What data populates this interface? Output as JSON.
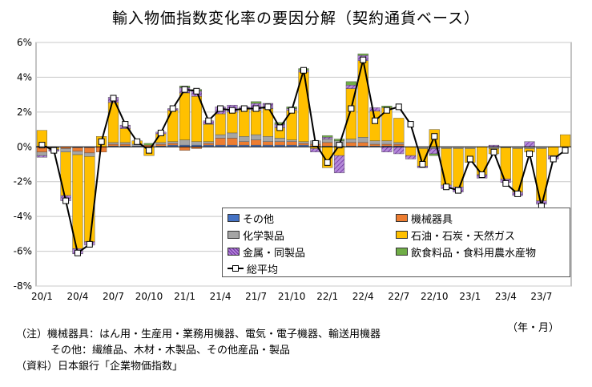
{
  "title": "輸入物価指数変化率の要因分解（契約通貨ベース）",
  "unit_label": "（年・月）",
  "notes": {
    "line1": "（注）機械器具：はん用・生産用・業務用機器、電気・電子機器、輸送用機器",
    "line2": "その他：繊維品、木材・木製品、その他産品・製品",
    "line3": "（資料）日本銀行「企業物価指数」"
  },
  "colors": {
    "other": "#4472c4",
    "machinery": "#ed7d31",
    "chemical": "#a5a5a5",
    "energy": "#ffc000",
    "metals": "#7030a0",
    "food": "#70ad47",
    "line": "#000000"
  },
  "chart_data": {
    "type": "bar",
    "stacked": true,
    "ylim": [
      -8,
      6
    ],
    "yticks": [
      -8,
      -6,
      -4,
      -2,
      0,
      2,
      4,
      6
    ],
    "ytick_labels": [
      "-8%",
      "-6%",
      "-4%",
      "-2%",
      "0%",
      "2%",
      "4%",
      "6%"
    ],
    "x_tick_labels": [
      "20/1",
      "20/4",
      "20/7",
      "20/10",
      "21/1",
      "21/4",
      "21/7",
      "21/10",
      "22/1",
      "22/4",
      "22/7",
      "22/10",
      "23/1",
      "23/4",
      "23/7"
    ],
    "x_tick_every": 3,
    "grid": true,
    "legend_position": "bottom-right",
    "categories": [
      "20/1",
      "20/2",
      "20/3",
      "20/4",
      "20/5",
      "20/6",
      "20/7",
      "20/8",
      "20/9",
      "20/10",
      "20/11",
      "20/12",
      "21/1",
      "21/2",
      "21/3",
      "21/4",
      "21/5",
      "21/6",
      "21/7",
      "21/8",
      "21/9",
      "21/10",
      "21/11",
      "21/12",
      "22/1",
      "22/2",
      "22/3",
      "22/4",
      "22/5",
      "22/6",
      "22/7",
      "22/8",
      "22/9",
      "22/10",
      "22/11",
      "22/12",
      "23/1",
      "23/2",
      "23/3",
      "23/4",
      "23/5",
      "23/6",
      "23/7",
      "23/8",
      "23/9"
    ],
    "series": [
      {
        "name": "その他",
        "key": "other",
        "values": [
          0.05,
          0.0,
          0.0,
          -0.05,
          -0.05,
          0.0,
          0.05,
          0.05,
          0.05,
          0.0,
          0.05,
          0.1,
          0.1,
          0.1,
          0.1,
          0.1,
          0.1,
          0.1,
          0.1,
          0.1,
          0.1,
          0.1,
          0.1,
          0.05,
          0.05,
          0.05,
          0.05,
          0.05,
          0.05,
          0.05,
          0.05,
          0.0,
          0.0,
          0.0,
          0.0,
          0.0,
          0.0,
          0.0,
          0.0,
          -0.05,
          0.0,
          0.0,
          0.0,
          0.0,
          0.0
        ]
      },
      {
        "name": "機械器具",
        "key": "machinery",
        "values": [
          -0.3,
          0.0,
          -0.1,
          -0.2,
          -0.3,
          -0.3,
          0.1,
          0.1,
          0.0,
          0.1,
          0.1,
          0.1,
          -0.2,
          -0.1,
          0.1,
          0.4,
          0.4,
          0.2,
          0.3,
          0.2,
          0.2,
          0.2,
          0.1,
          0.1,
          0.2,
          0.0,
          0.2,
          0.2,
          0.1,
          0.1,
          0.1,
          0.0,
          0.0,
          0.0,
          0.0,
          0.0,
          0.0,
          0.0,
          0.0,
          0.0,
          0.0,
          0.0,
          0.0,
          0.0,
          0.0
        ]
      },
      {
        "name": "化学製品",
        "key": "chemical",
        "values": [
          -0.2,
          -0.05,
          -0.2,
          -0.2,
          -0.2,
          0.0,
          0.1,
          0.1,
          0.1,
          0.0,
          0.1,
          0.1,
          0.3,
          0.2,
          0.1,
          0.2,
          0.3,
          0.3,
          0.3,
          0.3,
          0.2,
          0.1,
          0.1,
          0.2,
          0.2,
          0.3,
          0.2,
          0.3,
          0.2,
          0.2,
          0.1,
          0.0,
          -0.1,
          -0.1,
          -0.1,
          -0.1,
          -0.1,
          0.0,
          -0.1,
          0.0,
          -0.1,
          -0.1,
          -0.1,
          0.0,
          0.0
        ]
      },
      {
        "name": "石油・石炭・天然ガス",
        "key": "energy",
        "values": [
          0.9,
          -0.1,
          -2.5,
          -5.4,
          -4.9,
          0.6,
          2.3,
          0.8,
          0.2,
          -0.5,
          0.5,
          1.8,
          2.7,
          2.6,
          1.0,
          1.2,
          1.2,
          1.6,
          1.4,
          1.6,
          0.6,
          1.7,
          4.0,
          -0.1,
          -1.2,
          -0.5,
          2.9,
          4.4,
          1.7,
          1.9,
          1.4,
          -0.5,
          -1.0,
          1.0,
          -2.1,
          -2.2,
          -0.8,
          -1.6,
          -0.3,
          -1.8,
          -2.5,
          -0.2,
          -3.0,
          -0.5,
          0.7
        ]
      },
      {
        "name": "金属・同製品",
        "key": "metals",
        "values": [
          -0.1,
          -0.1,
          -0.3,
          -0.3,
          -0.2,
          0.0,
          0.3,
          0.2,
          0.0,
          0.0,
          0.1,
          0.1,
          0.3,
          0.3,
          0.2,
          0.4,
          0.4,
          0.1,
          0.4,
          0.3,
          0.2,
          0.1,
          0.1,
          -0.2,
          0.1,
          -1.0,
          0.2,
          0.3,
          0.2,
          -0.3,
          -0.4,
          -0.2,
          -0.1,
          -0.3,
          -0.2,
          -0.3,
          0.0,
          -0.2,
          0.1,
          -0.2,
          -0.2,
          0.3,
          -0.2,
          -0.2,
          0.0
        ]
      },
      {
        "name": "飲食料品・食料用農水産物",
        "key": "food",
        "values": [
          0.0,
          0.0,
          0.0,
          0.0,
          0.0,
          0.0,
          0.0,
          0.0,
          0.0,
          0.1,
          0.0,
          0.0,
          0.1,
          0.1,
          0.0,
          0.0,
          0.0,
          0.0,
          0.1,
          0.0,
          0.1,
          0.1,
          0.1,
          0.0,
          0.1,
          0.1,
          0.2,
          0.1,
          0.0,
          0.1,
          0.0,
          0.0,
          0.0,
          -0.1,
          0.0,
          0.0,
          0.0,
          0.0,
          0.0,
          0.0,
          0.0,
          0.0,
          0.0,
          0.0,
          0.0
        ]
      },
      {
        "name": "総平均",
        "key": "line",
        "type": "line",
        "values": [
          0.1,
          -0.2,
          -3.1,
          -6.1,
          -5.6,
          0.3,
          2.8,
          1.3,
          0.3,
          -0.2,
          0.8,
          2.2,
          3.3,
          3.2,
          1.5,
          2.2,
          2.1,
          2.2,
          2.2,
          2.3,
          1.1,
          2.1,
          4.4,
          0.2,
          -0.9,
          0.1,
          2.2,
          5.0,
          1.5,
          2.1,
          2.3,
          1.3,
          -1.0,
          0.6,
          -2.3,
          -2.5,
          -0.7,
          -1.6,
          -0.3,
          -2.1,
          -2.7,
          -0.4,
          -3.4,
          -0.7,
          -0.2
        ]
      }
    ]
  }
}
